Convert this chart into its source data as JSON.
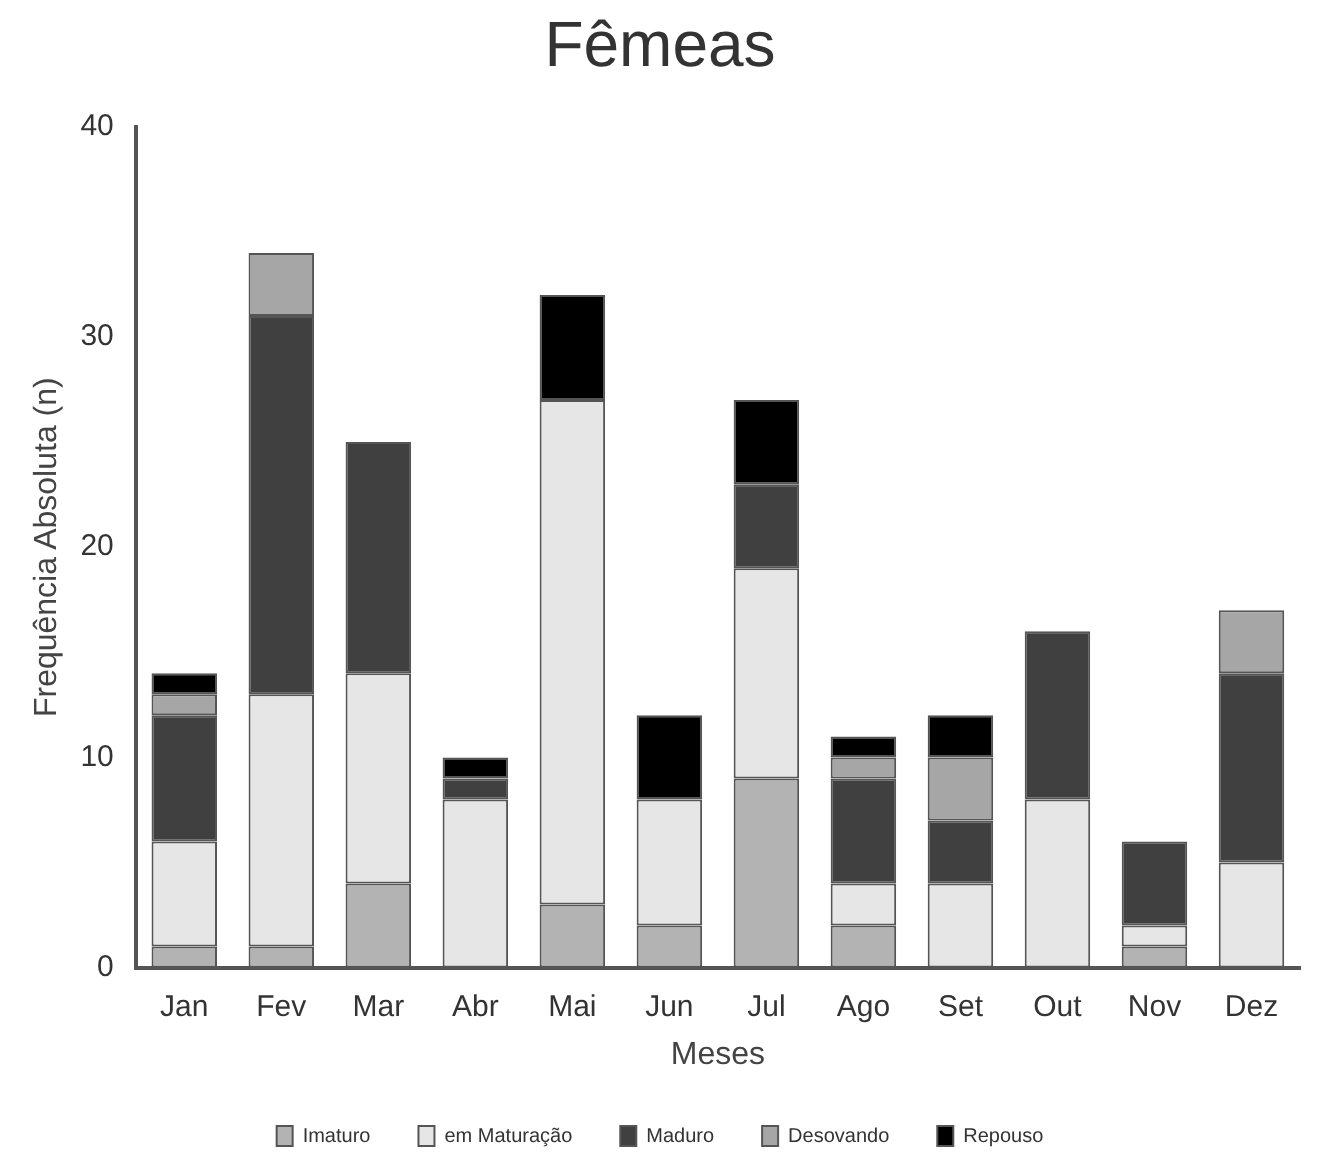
{
  "chart_data": {
    "type": "bar",
    "title": "Fêmeas",
    "xlabel": "Meses",
    "ylabel": "Frequência Absoluta (n)",
    "categories": [
      "Jan",
      "Fev",
      "Mar",
      "Abr",
      "Mai",
      "Jun",
      "Jul",
      "Ago",
      "Set",
      "Out",
      "Nov",
      "Dez"
    ],
    "series": [
      {
        "name": "Imaturo",
        "color": "#b3b3b3",
        "values": [
          1,
          1,
          4,
          0,
          3,
          2,
          9,
          2,
          0,
          0,
          1,
          0
        ]
      },
      {
        "name": "em Maturação",
        "color": "#e6e6e6",
        "values": [
          5,
          12,
          10,
          8,
          24,
          6,
          10,
          2,
          4,
          8,
          1,
          5
        ]
      },
      {
        "name": "Maduro",
        "color": "#404040",
        "values": [
          6,
          18,
          11,
          1,
          0,
          0,
          4,
          5,
          3,
          8,
          4,
          9
        ]
      },
      {
        "name": "Desovando",
        "color": "#a6a6a6",
        "values": [
          1,
          3,
          0,
          0,
          0,
          0,
          0,
          1,
          3,
          0,
          0,
          3
        ]
      },
      {
        "name": "Repouso",
        "color": "#000000",
        "values": [
          1,
          0,
          0,
          1,
          5,
          4,
          4,
          1,
          2,
          0,
          0,
          0
        ]
      }
    ],
    "stacked": true,
    "ylim": [
      0,
      40
    ],
    "yticks": [
      0,
      10,
      20,
      30,
      40
    ],
    "grid": false,
    "legend": "bottom"
  }
}
